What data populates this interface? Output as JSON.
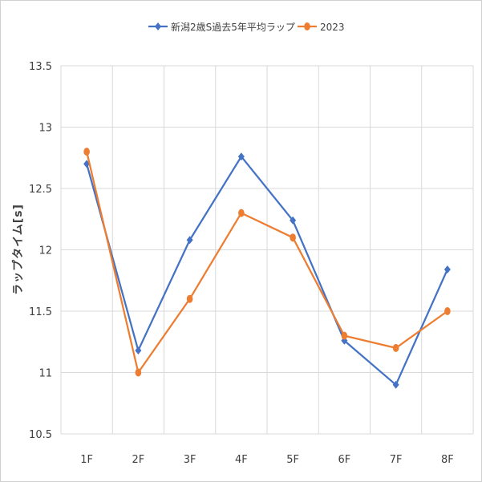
{
  "chart_data": {
    "type": "line",
    "title": "",
    "xlabel": "",
    "ylabel": "ラップタイム[s]",
    "categories": [
      "1F",
      "2F",
      "3F",
      "4F",
      "5F",
      "6F",
      "7F",
      "8F"
    ],
    "ylim": [
      10.5,
      13.5
    ],
    "yticks": [
      "10.5",
      "11",
      "11.5",
      "12",
      "12.5",
      "13",
      "13.5"
    ],
    "grid": true,
    "legend_position": "top",
    "series": [
      {
        "name": "新潟2歳S過去5年平均ラップ",
        "color": "#4472C4",
        "marker": "diamond",
        "values": [
          12.7,
          11.18,
          12.08,
          12.76,
          12.24,
          11.26,
          10.9,
          11.84
        ]
      },
      {
        "name": "2023",
        "color": "#ED7D31",
        "marker": "circle",
        "values": [
          12.8,
          11.0,
          11.6,
          12.3,
          12.1,
          11.3,
          11.2,
          11.5
        ]
      }
    ]
  }
}
